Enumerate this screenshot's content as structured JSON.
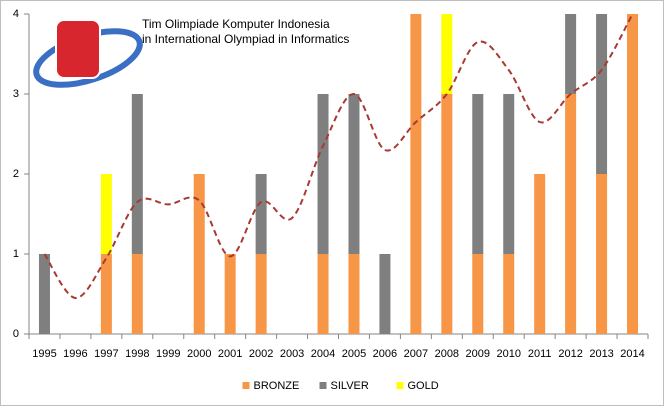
{
  "chart_data": {
    "type": "stacked_bar",
    "title": [
      "Tim Olimpiade Komputer Indonesia",
      "in International Olympiad in Informatics"
    ],
    "categories": [
      "1995",
      "1996",
      "1997",
      "1998",
      "1999",
      "2000",
      "2001",
      "2002",
      "2003",
      "2004",
      "2005",
      "2006",
      "2007",
      "2008",
      "2009",
      "2010",
      "2011",
      "2012",
      "2013",
      "2014"
    ],
    "series": [
      {
        "name": "BRONZE",
        "color": "#f79646",
        "values": [
          0,
          0,
          1,
          1,
          0,
          2,
          1,
          1,
          0,
          1,
          1,
          0,
          4,
          3,
          1,
          1,
          2,
          3,
          2,
          4
        ]
      },
      {
        "name": "SILVER",
        "color": "#7f7f7f",
        "values": [
          1,
          0,
          0,
          2,
          0,
          0,
          0,
          1,
          0,
          2,
          2,
          1,
          0,
          0,
          2,
          2,
          0,
          1,
          2,
          0
        ]
      },
      {
        "name": "GOLD",
        "color": "#ffff00",
        "values": [
          0,
          0,
          1,
          0,
          0,
          0,
          0,
          0,
          0,
          0,
          0,
          0,
          0,
          1,
          0,
          0,
          0,
          0,
          0,
          0
        ]
      },
      {
        "type": "line",
        "dashed": true,
        "smooth": true,
        "color": "#a83a32",
        "values": [
          1.0,
          0.45,
          0.95,
          1.65,
          1.62,
          1.67,
          0.97,
          1.65,
          1.45,
          2.35,
          3.0,
          2.3,
          2.65,
          3.0,
          3.65,
          3.3,
          2.65,
          3.0,
          3.3,
          4.0
        ]
      }
    ],
    "ylim": [
      0,
      4
    ],
    "yticks": [
      0,
      1,
      2,
      3,
      4
    ],
    "grid": false,
    "legend": "bottom"
  }
}
